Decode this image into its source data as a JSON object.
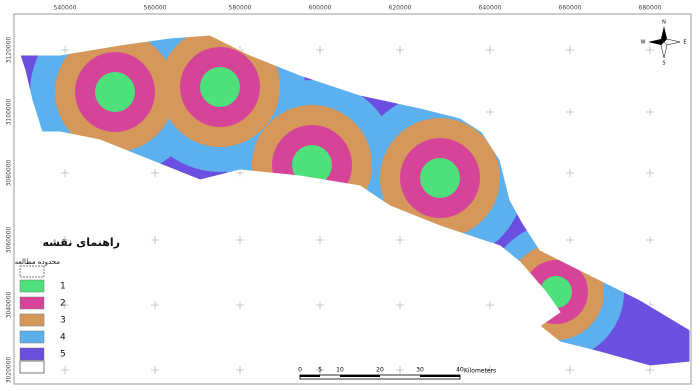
{
  "map": {
    "x_labels": [
      540000,
      560000,
      580000,
      600000,
      620000,
      640000,
      660000,
      680000
    ],
    "y_labels": [
      3120000,
      3100000,
      3080000,
      3060000,
      3040000,
      3020000
    ]
  },
  "legend": {
    "title": "راهنمای نقشه",
    "study_area": "محدوده مطالعه",
    "items": [
      "1",
      "2",
      "3",
      "4",
      "5"
    ]
  },
  "scale_bar": {
    "ticks": [
      0,
      5,
      10,
      20,
      30,
      40
    ],
    "unit": "Kilometers"
  },
  "compass": {
    "north": "N",
    "east": "E",
    "south": "S",
    "west": "W"
  }
}
